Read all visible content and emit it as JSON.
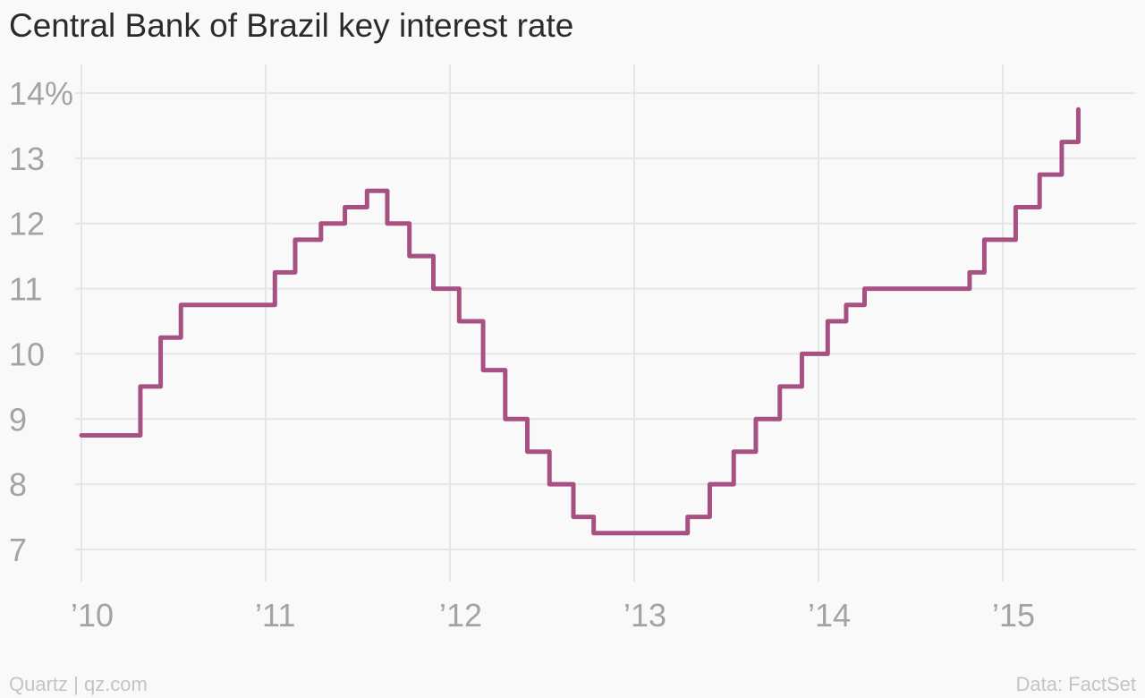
{
  "title": "Central Bank of Brazil key interest rate",
  "source_left": "Quartz | qz.com",
  "source_right": "Data: FactSet",
  "colors": {
    "line": "#a75182",
    "grid": "#e6e6e6",
    "tick_text": "#a3a3a3"
  },
  "chart_data": {
    "type": "line",
    "step": true,
    "title": "Central Bank of Brazil key interest rate",
    "xlabel": "",
    "ylabel": "",
    "y_unit_suffix": "%",
    "grid": true,
    "xlim": [
      2010.0,
      2015.6
    ],
    "ylim": [
      7,
      14
    ],
    "x_ticks": [
      2010,
      2011,
      2012,
      2013,
      2014,
      2015
    ],
    "x_tick_labels": [
      "’10",
      "’11",
      "’12",
      "’13",
      "’14",
      "’15"
    ],
    "y_ticks": [
      7,
      8,
      9,
      10,
      11,
      12,
      13,
      14
    ],
    "y_tick_labels": [
      "7",
      "8",
      "9",
      "10",
      "11",
      "12",
      "13",
      "14%"
    ],
    "series": [
      {
        "x": [
          2010.0,
          2010.32,
          2010.43,
          2010.54,
          2011.05,
          2011.16,
          2011.3,
          2011.43,
          2011.55,
          2011.66,
          2011.78,
          2011.91,
          2012.05,
          2012.18,
          2012.3,
          2012.42,
          2012.54,
          2012.67,
          2012.78,
          2013.29,
          2013.41,
          2013.54,
          2013.66,
          2013.79,
          2013.91,
          2014.05,
          2014.15,
          2014.25,
          2014.82,
          2014.9,
          2015.07,
          2015.2,
          2015.32,
          2015.41
        ],
        "y": [
          8.75,
          9.5,
          10.25,
          10.75,
          11.25,
          11.75,
          12.0,
          12.25,
          12.5,
          12.0,
          11.5,
          11.0,
          10.5,
          9.75,
          9.0,
          8.5,
          8.0,
          7.5,
          7.25,
          7.5,
          8.0,
          8.5,
          9.0,
          9.5,
          10.0,
          10.5,
          10.75,
          11.0,
          11.25,
          11.75,
          12.25,
          12.75,
          13.25,
          13.75
        ],
        "end_x": 2015.41
      }
    ]
  }
}
